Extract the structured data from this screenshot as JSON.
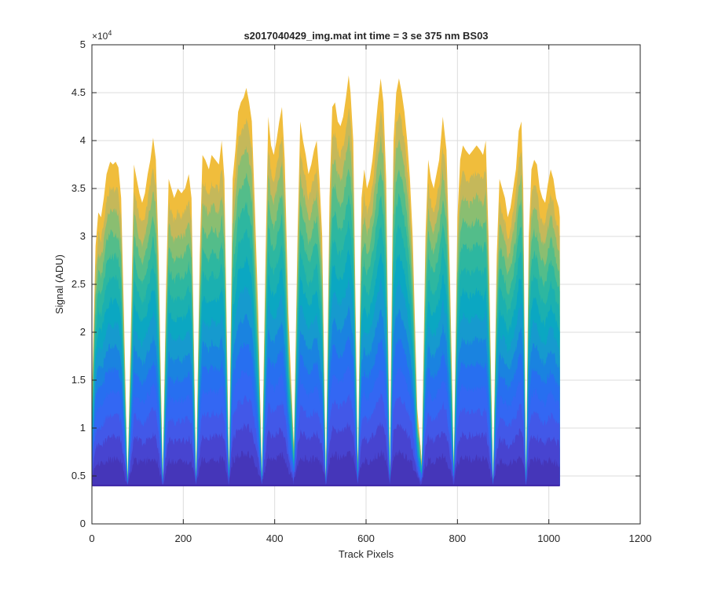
{
  "chart_data": {
    "type": "area",
    "title": "s2017040429_img.mat int time = 3 se  375 nm BS03",
    "xlabel": "Track Pixels",
    "ylabel": "Signal (ADU)",
    "y_exponent_label": "×10",
    "y_exponent_power": "4",
    "xlim": [
      0,
      1200
    ],
    "ylim": [
      0,
      50000
    ],
    "x_ticks": [
      0,
      200,
      400,
      600,
      800,
      1000,
      1200
    ],
    "x_tick_labels": [
      "0",
      "200",
      "400",
      "600",
      "800",
      "1000",
      "1200"
    ],
    "y_ticks": [
      0,
      5000,
      10000,
      15000,
      20000,
      25000,
      30000,
      35000,
      40000,
      45000,
      50000
    ],
    "y_tick_labels": [
      "0",
      "0.5",
      "1",
      "1.5",
      "2",
      "2.5",
      "3",
      "3.5",
      "4",
      "4.5",
      "5"
    ],
    "grid": true,
    "baseline": 4000,
    "x_range": [
      1,
      1024
    ],
    "valleys": [
      {
        "x": 78,
        "y": 4500
      },
      {
        "x": 155,
        "y": 4500
      },
      {
        "x": 228,
        "y": 4700
      },
      {
        "x": 300,
        "y": 5200
      },
      {
        "x": 372,
        "y": 5000
      },
      {
        "x": 442,
        "y": 8000
      },
      {
        "x": 512,
        "y": 4600
      },
      {
        "x": 582,
        "y": 5500
      },
      {
        "x": 652,
        "y": 5500
      },
      {
        "x": 722,
        "y": 6500
      },
      {
        "x": 792,
        "y": 6000
      },
      {
        "x": 878,
        "y": 4400
      },
      {
        "x": 950,
        "y": 4200
      }
    ],
    "envelope": [
      [
        1,
        15000
      ],
      [
        8,
        29000
      ],
      [
        14,
        32500
      ],
      [
        20,
        32000
      ],
      [
        26,
        34000
      ],
      [
        32,
        36500
      ],
      [
        40,
        37800
      ],
      [
        46,
        37500
      ],
      [
        52,
        37800
      ],
      [
        58,
        37200
      ],
      [
        64,
        34000
      ],
      [
        70,
        22000
      ],
      [
        78,
        4500
      ],
      [
        86,
        22000
      ],
      [
        92,
        37500
      ],
      [
        98,
        36000
      ],
      [
        104,
        34500
      ],
      [
        110,
        33500
      ],
      [
        116,
        34500
      ],
      [
        122,
        36500
      ],
      [
        128,
        38000
      ],
      [
        134,
        40300
      ],
      [
        140,
        38000
      ],
      [
        146,
        28000
      ],
      [
        155,
        4500
      ],
      [
        162,
        24000
      ],
      [
        168,
        36000
      ],
      [
        174,
        35000
      ],
      [
        180,
        34000
      ],
      [
        188,
        35000
      ],
      [
        196,
        34500
      ],
      [
        204,
        35000
      ],
      [
        212,
        36500
      ],
      [
        218,
        34000
      ],
      [
        228,
        4700
      ],
      [
        236,
        28000
      ],
      [
        242,
        38500
      ],
      [
        248,
        38000
      ],
      [
        256,
        37000
      ],
      [
        262,
        38500
      ],
      [
        270,
        38000
      ],
      [
        278,
        37500
      ],
      [
        284,
        40000
      ],
      [
        290,
        36000
      ],
      [
        300,
        5200
      ],
      [
        308,
        36000
      ],
      [
        314,
        39000
      ],
      [
        320,
        43000
      ],
      [
        326,
        44000
      ],
      [
        332,
        44500
      ],
      [
        338,
        45500
      ],
      [
        344,
        44000
      ],
      [
        350,
        42000
      ],
      [
        356,
        34000
      ],
      [
        364,
        22000
      ],
      [
        372,
        5000
      ],
      [
        380,
        28000
      ],
      [
        386,
        42500
      ],
      [
        392,
        39500
      ],
      [
        398,
        38500
      ],
      [
        404,
        40000
      ],
      [
        410,
        42000
      ],
      [
        416,
        43500
      ],
      [
        422,
        38000
      ],
      [
        430,
        22000
      ],
      [
        442,
        8000
      ],
      [
        450,
        30000
      ],
      [
        456,
        42000
      ],
      [
        462,
        40000
      ],
      [
        468,
        38500
      ],
      [
        474,
        36500
      ],
      [
        480,
        37500
      ],
      [
        486,
        39000
      ],
      [
        492,
        40000
      ],
      [
        498,
        36000
      ],
      [
        504,
        30000
      ],
      [
        512,
        4600
      ],
      [
        520,
        34000
      ],
      [
        526,
        43500
      ],
      [
        532,
        44000
      ],
      [
        538,
        42000
      ],
      [
        544,
        41500
      ],
      [
        550,
        42500
      ],
      [
        556,
        44500
      ],
      [
        562,
        46800
      ],
      [
        566,
        45000
      ],
      [
        572,
        40000
      ],
      [
        582,
        5500
      ],
      [
        590,
        34000
      ],
      [
        596,
        37000
      ],
      [
        602,
        35000
      ],
      [
        608,
        36000
      ],
      [
        614,
        38000
      ],
      [
        620,
        41000
      ],
      [
        626,
        44000
      ],
      [
        632,
        46500
      ],
      [
        638,
        44000
      ],
      [
        644,
        36000
      ],
      [
        652,
        5500
      ],
      [
        660,
        40000
      ],
      [
        666,
        45000
      ],
      [
        672,
        46500
      ],
      [
        678,
        45000
      ],
      [
        684,
        43000
      ],
      [
        690,
        40000
      ],
      [
        696,
        36000
      ],
      [
        702,
        30000
      ],
      [
        712,
        12000
      ],
      [
        722,
        6500
      ],
      [
        730,
        30000
      ],
      [
        736,
        38000
      ],
      [
        742,
        36000
      ],
      [
        748,
        35000
      ],
      [
        754,
        36500
      ],
      [
        760,
        38000
      ],
      [
        768,
        42500
      ],
      [
        776,
        39000
      ],
      [
        784,
        25000
      ],
      [
        792,
        6000
      ],
      [
        800,
        32000
      ],
      [
        806,
        38000
      ],
      [
        812,
        39500
      ],
      [
        818,
        39000
      ],
      [
        826,
        38500
      ],
      [
        834,
        39000
      ],
      [
        842,
        39500
      ],
      [
        850,
        39000
      ],
      [
        856,
        38500
      ],
      [
        862,
        40000
      ],
      [
        868,
        30000
      ],
      [
        878,
        4400
      ],
      [
        886,
        28000
      ],
      [
        892,
        36000
      ],
      [
        898,
        35000
      ],
      [
        904,
        34000
      ],
      [
        910,
        32000
      ],
      [
        916,
        33000
      ],
      [
        922,
        35000
      ],
      [
        928,
        37000
      ],
      [
        934,
        41000
      ],
      [
        940,
        42000
      ],
      [
        944,
        35000
      ],
      [
        950,
        4200
      ],
      [
        956,
        30000
      ],
      [
        962,
        37000
      ],
      [
        968,
        38000
      ],
      [
        974,
        37500
      ],
      [
        980,
        35000
      ],
      [
        986,
        34000
      ],
      [
        992,
        33500
      ],
      [
        998,
        35500
      ],
      [
        1004,
        37000
      ],
      [
        1010,
        36000
      ],
      [
        1016,
        34000
      ],
      [
        1022,
        33000
      ],
      [
        1024,
        32000
      ]
    ],
    "layer_fractions": [
      0,
      0.08,
      0.15,
      0.22,
      0.29,
      0.36,
      0.43,
      0.5,
      0.57,
      0.64,
      0.71,
      0.78,
      0.85,
      0.92,
      1.0
    ],
    "layer_colors": [
      "#3e26a8",
      "#4536b9",
      "#4744d0",
      "#4258e8",
      "#3367f3",
      "#276ff0",
      "#1a83e0",
      "#169ace",
      "#0ba7c2",
      "#1bb0b0",
      "#2db7a0",
      "#53bd8a",
      "#8abe71",
      "#c5b85a",
      "#f0bd3c"
    ]
  }
}
